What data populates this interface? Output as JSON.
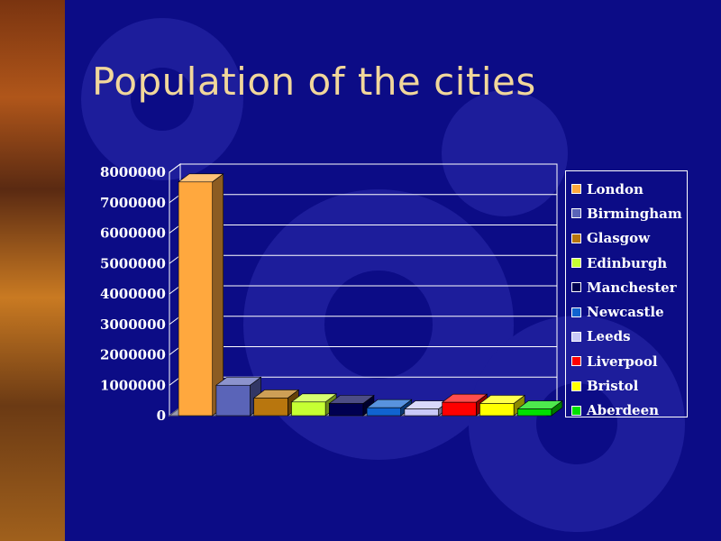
{
  "slide": {
    "title": "Population of the cities"
  },
  "colors": {
    "background": "#0c0c86",
    "title": "#f1d79b",
    "gridline": "#ffffff"
  },
  "chart_data": {
    "type": "bar",
    "title": "",
    "xlabel": "",
    "ylabel": "",
    "ylim": [
      0,
      8000000
    ],
    "grid": true,
    "legend_position": "right",
    "y_ticks": [
      "0",
      "1000000",
      "2000000",
      "3000000",
      "4000000",
      "5000000",
      "6000000",
      "7000000",
      "8000000"
    ],
    "categories": [
      "London",
      "Birmingham",
      "Glasgow",
      "Edinburgh",
      "Manchester",
      "Newcastle",
      "Leeds",
      "Liverpool",
      "Bristol",
      "Aberdeen"
    ],
    "values": [
      7680000,
      1000000,
      580000,
      450000,
      400000,
      260000,
      220000,
      440000,
      400000,
      220000
    ],
    "colors": [
      "#ffa83e",
      "#5a64b8",
      "#b8760e",
      "#c6ff33",
      "#000050",
      "#1064d0",
      "#c8c8f8",
      "#ff0000",
      "#ffff00",
      "#00e000"
    ]
  }
}
